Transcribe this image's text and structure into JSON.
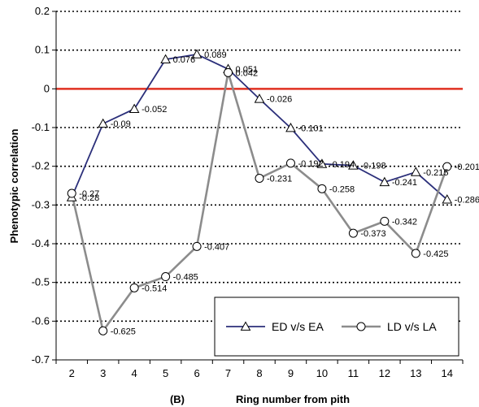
{
  "chart_data": {
    "type": "line",
    "xlabel": "Ring number from pith",
    "panel_label": "(B)",
    "ylabel": "Phenotypic correlation",
    "x": [
      2,
      3,
      4,
      5,
      6,
      7,
      8,
      9,
      10,
      11,
      12,
      13,
      14
    ],
    "ylim": [
      -0.7,
      0.2
    ],
    "yticks": [
      0.2,
      0.1,
      0,
      -0.1,
      -0.2,
      -0.3,
      -0.4,
      -0.5,
      -0.6,
      -0.7
    ],
    "ytick_labels": [
      "0.2",
      "0.1",
      "0",
      "-0.1",
      "-0.2",
      "-0.3",
      "-0.4",
      "-0.5",
      "-0.6",
      "-0.7"
    ],
    "grid": "horizontal dotted",
    "zero_line_color": "#e03020",
    "legend_position": "bottom-right",
    "series": [
      {
        "name": "ED v/s EA",
        "marker": "triangle",
        "color": "#2b2f7a",
        "values": [
          -0.28,
          -0.09,
          -0.052,
          0.076,
          0.089,
          0.051,
          -0.026,
          -0.101,
          -0.194,
          -0.198,
          -0.241,
          -0.215,
          -0.286
        ],
        "labels": [
          "-0.28",
          "-0.09",
          "-0.052",
          "0.076",
          "0.089",
          "0.051",
          "-0.026",
          "-0.101",
          "-0.194",
          "-0.198",
          "-0.241",
          "-0.215",
          "-0.286"
        ]
      },
      {
        "name": "LD v/s LA",
        "marker": "circle",
        "color": "#8c8c8c",
        "values": [
          -0.27,
          -0.625,
          -0.514,
          -0.485,
          -0.407,
          0.042,
          -0.231,
          -0.192,
          -0.258,
          -0.373,
          -0.342,
          -0.425,
          -0.201
        ],
        "labels": [
          "-0.27",
          "-0.625",
          "-0.514",
          "-0.485",
          "-0.407",
          "0.042",
          "-0.231",
          "-0.192",
          "-0.258",
          "-0.373",
          "-0.342",
          "-0.425",
          "-0.201"
        ]
      }
    ]
  }
}
